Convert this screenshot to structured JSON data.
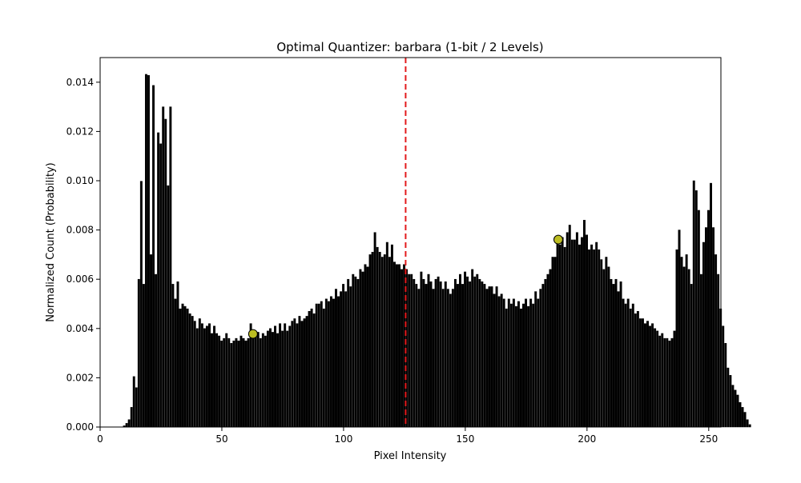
{
  "chart_data": {
    "type": "bar",
    "title": "Optimal Quantizer: barbara (1-bit / 2 Levels)",
    "xlabel": "Pixel Intensity",
    "ylabel": "Normalized Count (Probability)",
    "xlim": [
      0,
      255
    ],
    "ylim": [
      0,
      0.015
    ],
    "xticks": [
      0,
      50,
      100,
      150,
      200,
      250
    ],
    "yticks": [
      "0.000",
      "0.002",
      "0.004",
      "0.006",
      "0.008",
      "0.010",
      "0.012",
      "0.014"
    ],
    "grid": false,
    "colors": {
      "bars": "#000000",
      "threshold": "#e31a1c",
      "levels": "#bcbd22"
    },
    "threshold": 125.5,
    "levels": [
      {
        "x": 62.8,
        "y": 0.00378
      },
      {
        "x": 188.2,
        "y": 0.00761
      }
    ],
    "values": [
      0,
      0,
      0,
      0,
      0,
      0,
      0,
      0,
      0,
      0,
      5e-05,
      0.00015,
      0.0003,
      0.0008,
      0.00205,
      0.0016,
      0.006,
      0.00998,
      0.0058,
      0.01432,
      0.01428,
      0.007,
      0.01387,
      0.0062,
      0.01195,
      0.0115,
      0.013,
      0.0125,
      0.0098,
      0.013,
      0.0058,
      0.0052,
      0.0059,
      0.0048,
      0.005,
      0.0049,
      0.0048,
      0.0046,
      0.0045,
      0.0043,
      0.004,
      0.0044,
      0.0042,
      0.004,
      0.0041,
      0.0042,
      0.0038,
      0.0041,
      0.0038,
      0.0037,
      0.0035,
      0.0036,
      0.0038,
      0.0036,
      0.0034,
      0.0035,
      0.0036,
      0.0035,
      0.0037,
      0.0036,
      0.0035,
      0.0036,
      0.0042,
      0.0038,
      0.0037,
      0.00385,
      0.0036,
      0.0038,
      0.0037,
      0.0039,
      0.004,
      0.00385,
      0.0041,
      0.0038,
      0.0042,
      0.0039,
      0.0042,
      0.0039,
      0.0041,
      0.0043,
      0.0044,
      0.0042,
      0.0045,
      0.0043,
      0.0044,
      0.0045,
      0.0047,
      0.0048,
      0.0046,
      0.005,
      0.005,
      0.0051,
      0.0048,
      0.0052,
      0.0051,
      0.0053,
      0.0052,
      0.0056,
      0.0053,
      0.0055,
      0.0058,
      0.0055,
      0.006,
      0.0057,
      0.0062,
      0.0061,
      0.006,
      0.0064,
      0.0063,
      0.0066,
      0.0065,
      0.007,
      0.0071,
      0.0079,
      0.0073,
      0.0071,
      0.0069,
      0.007,
      0.0075,
      0.0069,
      0.0074,
      0.0067,
      0.0066,
      0.0066,
      0.0064,
      0.0066,
      0.0064,
      0.0062,
      0.0062,
      0.006,
      0.0058,
      0.0056,
      0.0063,
      0.006,
      0.0058,
      0.0062,
      0.0059,
      0.0056,
      0.006,
      0.0061,
      0.0059,
      0.0056,
      0.0059,
      0.0056,
      0.0054,
      0.0056,
      0.006,
      0.0058,
      0.0062,
      0.0058,
      0.0063,
      0.0061,
      0.0059,
      0.0064,
      0.0061,
      0.0062,
      0.006,
      0.0059,
      0.0058,
      0.0056,
      0.0057,
      0.0057,
      0.0054,
      0.0057,
      0.0053,
      0.0054,
      0.0052,
      0.0048,
      0.0052,
      0.005,
      0.0052,
      0.0049,
      0.0051,
      0.0048,
      0.005,
      0.0052,
      0.0049,
      0.0052,
      0.005,
      0.0055,
      0.0052,
      0.0056,
      0.0058,
      0.006,
      0.0062,
      0.0064,
      0.0069,
      0.0069,
      0.0075,
      0.0074,
      0.0077,
      0.0073,
      0.0079,
      0.0082,
      0.0076,
      0.0076,
      0.0079,
      0.0074,
      0.0077,
      0.0084,
      0.0078,
      0.0072,
      0.0074,
      0.0072,
      0.0075,
      0.0072,
      0.0068,
      0.0064,
      0.0069,
      0.0065,
      0.006,
      0.0058,
      0.006,
      0.0055,
      0.0059,
      0.0052,
      0.005,
      0.0052,
      0.0048,
      0.005,
      0.0046,
      0.0047,
      0.0044,
      0.0044,
      0.0042,
      0.0043,
      0.0041,
      0.0042,
      0.004,
      0.0039,
      0.0037,
      0.0038,
      0.0036,
      0.0036,
      0.0035,
      0.0036,
      0.0039,
      0.0072,
      0.008,
      0.0069,
      0.0065,
      0.007,
      0.0064,
      0.0058,
      0.01,
      0.0096,
      0.0088,
      0.0062,
      0.0075,
      0.0081,
      0.0088,
      0.0099,
      0.0081,
      0.007,
      0.0062,
      0.0048,
      0.0041,
      0.0034,
      0.0024,
      0.0021,
      0.0017,
      0.0015,
      0.0013,
      0.001,
      0.0008,
      0.0006,
      0.0003,
      0.0001,
      0,
      0,
      0,
      0,
      0,
      0,
      0,
      0
    ]
  }
}
